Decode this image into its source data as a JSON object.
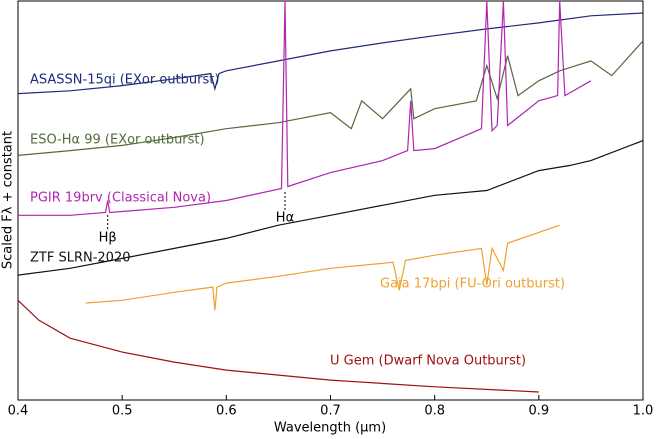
{
  "chart_data": {
    "type": "line",
    "x_label": "Wavelength (μm)",
    "y_label": "Scaled Fλ + constant",
    "xlim": [
      0.4,
      1.0
    ],
    "ylim": [
      0,
      10
    ],
    "xticks": [
      0.4,
      0.5,
      0.6,
      0.7,
      0.8,
      0.9,
      {
        "value": 1.0,
        "label": "1.0"
      }
    ],
    "series": [
      {
        "name": "ASASSN-15qi (EXor outburst)",
        "color": "#1f2a7a",
        "x": [
          0.4,
          0.45,
          0.5,
          0.55,
          0.585,
          0.589,
          0.593,
          0.6,
          0.65,
          0.7,
          0.75,
          0.8,
          0.85,
          0.9,
          0.95,
          1.0
        ],
        "values": [
          7.68,
          7.75,
          7.88,
          8.05,
          8.18,
          7.8,
          8.18,
          8.25,
          8.5,
          8.75,
          8.95,
          9.13,
          9.3,
          9.45,
          9.63,
          9.7
        ]
      },
      {
        "name": "ESO-Hα 99 (EXor outburst)",
        "color": "#556b3a",
        "x": [
          0.4,
          0.45,
          0.5,
          0.55,
          0.6,
          0.65,
          0.7,
          0.72,
          0.73,
          0.75,
          0.777,
          0.78,
          0.8,
          0.84,
          0.85,
          0.86,
          0.87,
          0.88,
          0.9,
          0.92,
          0.95,
          0.97,
          1.0
        ],
        "values": [
          6.13,
          6.25,
          6.38,
          6.58,
          6.8,
          6.95,
          7.2,
          6.8,
          7.5,
          7.05,
          7.8,
          7.05,
          7.3,
          7.5,
          8.38,
          7.55,
          8.63,
          7.63,
          8.0,
          8.25,
          8.5,
          8.13,
          9.0
        ]
      },
      {
        "name": "PGIR 19brv (Classical Nova)",
        "color": "#b026b0",
        "x": [
          0.4,
          0.45,
          0.484,
          0.4861,
          0.488,
          0.55,
          0.6,
          0.653,
          0.6563,
          0.659,
          0.7,
          0.75,
          0.774,
          0.777,
          0.78,
          0.8,
          0.845,
          0.85,
          0.855,
          0.86,
          0.866,
          0.87,
          0.9,
          0.918,
          0.92,
          0.925,
          0.95
        ],
        "values": [
          4.63,
          4.63,
          4.7,
          5.0,
          4.7,
          4.83,
          5.0,
          5.3,
          10.0,
          5.35,
          5.7,
          6.0,
          6.25,
          7.5,
          6.25,
          6.3,
          6.8,
          10.0,
          6.75,
          6.88,
          10.0,
          6.88,
          7.5,
          7.63,
          10.0,
          7.63,
          8.0
        ]
      },
      {
        "name": "ZTF SLRN-2020",
        "color": "#111111",
        "x": [
          0.4,
          0.45,
          0.5,
          0.55,
          0.6,
          0.65,
          0.7,
          0.75,
          0.8,
          0.85,
          0.9,
          0.93,
          0.95,
          1.0
        ],
        "values": [
          3.13,
          3.3,
          3.55,
          3.8,
          4.05,
          4.38,
          4.63,
          4.88,
          5.13,
          5.25,
          5.75,
          5.88,
          6.0,
          6.5
        ]
      },
      {
        "name": "Gaia 17bpi (FU-Ori outburst)",
        "color": "#f0a030",
        "x": [
          0.465,
          0.5,
          0.55,
          0.587,
          0.589,
          0.591,
          0.6,
          0.65,
          0.7,
          0.76,
          0.766,
          0.772,
          0.8,
          0.845,
          0.85,
          0.855,
          0.866,
          0.87,
          0.9,
          0.92
        ],
        "values": [
          2.43,
          2.5,
          2.7,
          2.83,
          2.25,
          2.83,
          2.93,
          3.1,
          3.3,
          3.45,
          2.75,
          3.5,
          3.63,
          3.8,
          2.88,
          3.8,
          3.25,
          3.93,
          4.2,
          4.38
        ]
      },
      {
        "name": "U Gem (Dwarf Nova Outburst)",
        "color": "#a01010",
        "x": [
          0.4,
          0.42,
          0.45,
          0.5,
          0.55,
          0.6,
          0.7,
          0.8,
          0.9
        ],
        "values": [
          2.5,
          2.0,
          1.55,
          1.2,
          0.95,
          0.75,
          0.5,
          0.33,
          0.2
        ]
      }
    ],
    "annotations": [
      {
        "text": "Hα",
        "x": 0.6563
      },
      {
        "text": "Hβ",
        "x": 0.4861
      }
    ]
  }
}
